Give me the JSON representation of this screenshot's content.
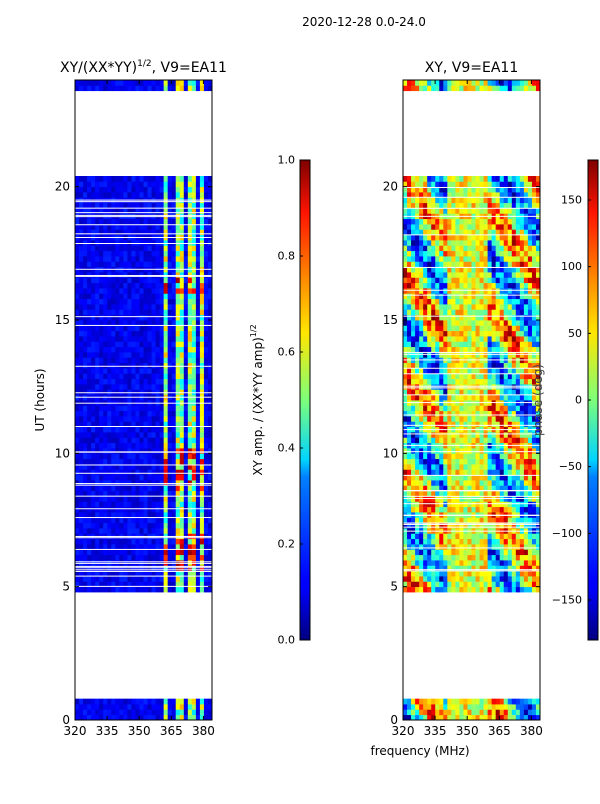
{
  "figure": {
    "suptitle": "2020-12-28 0.0-24.0",
    "xlabel": "frequency (MHz)"
  },
  "chart_data": [
    {
      "type": "heatmap",
      "title_base": "XY/(XX*YY)",
      "title_exp": "1/2",
      "title_suffix": ", V9=EA11",
      "ylabel": "UT (hours)",
      "xlim": [
        320,
        384
      ],
      "ylim": [
        0,
        24
      ],
      "xticks": [
        "320",
        "335",
        "350",
        "365",
        "380"
      ],
      "yticks": [
        "0",
        "5",
        "10",
        "15",
        "20"
      ],
      "xtick_values": [
        320,
        335,
        350,
        365,
        380
      ],
      "ytick_values": [
        0,
        5,
        10,
        15,
        20
      ],
      "band_ranges_mhz": [
        [
          361,
          364
        ],
        [
          367,
          370
        ],
        [
          373,
          376
        ],
        [
          378,
          381
        ]
      ],
      "data_gaps_hours": [
        [
          0.9,
          3.35
        ],
        [
          3.45,
          4.9
        ],
        [
          20.5,
          23.7
        ]
      ],
      "colorbar": {
        "label_base": "XY amp. / (XX*YY amp)",
        "label_exp": "1/2",
        "range": [
          0.0,
          1.0
        ],
        "ticks": [
          "0.0",
          "0.2",
          "0.4",
          "0.6",
          "0.8",
          "1.0"
        ],
        "tick_values": [
          0.0,
          0.2,
          0.4,
          0.6,
          0.8,
          1.0
        ]
      }
    },
    {
      "type": "heatmap",
      "title": "XY, V9=EA11",
      "xlim": [
        320,
        384
      ],
      "ylim": [
        0,
        24
      ],
      "xticks": [
        "320",
        "335",
        "350",
        "365",
        "380"
      ],
      "yticks": [
        "0",
        "5",
        "10",
        "15",
        "20"
      ],
      "xtick_values": [
        320,
        335,
        350,
        365,
        380
      ],
      "ytick_values": [
        0,
        5,
        10,
        15,
        20
      ],
      "data_gaps_hours": [
        [
          0.9,
          3.35
        ],
        [
          3.45,
          4.9
        ],
        [
          20.5,
          23.7
        ]
      ],
      "colorbar": {
        "label": "phase (deg)",
        "range": [
          -180,
          180
        ],
        "ticks": [
          "−150",
          "−100",
          "−50",
          "0",
          "50",
          "100",
          "150"
        ],
        "tick_values": [
          -150,
          -100,
          -50,
          0,
          50,
          100,
          150
        ]
      }
    }
  ]
}
